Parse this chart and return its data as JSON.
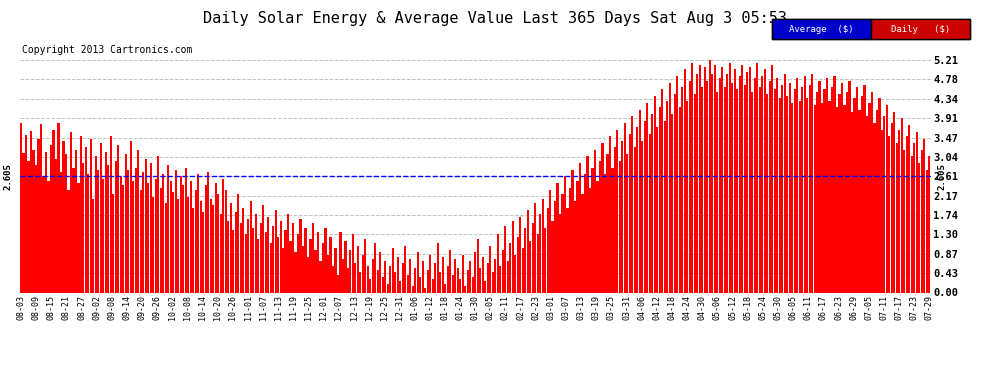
{
  "title": "Daily Solar Energy & Average Value Last 365 Days Sat Aug 3 05:53",
  "copyright": "Copyright 2013 Cartronics.com",
  "average_value": 2.605,
  "average_label": "2.605",
  "ylim": [
    0.0,
    5.21
  ],
  "yticks": [
    0.0,
    0.43,
    0.87,
    1.3,
    1.74,
    2.17,
    2.61,
    3.04,
    3.47,
    3.91,
    4.34,
    4.78,
    5.21
  ],
  "bar_color": "#FF0000",
  "average_line_color": "#0000FF",
  "background_color": "#FFFFFF",
  "grid_color": "#BBBBBB",
  "title_fontsize": 11,
  "legend_labels": [
    "Average  ($)",
    "Daily   ($)"
  ],
  "legend_colors": [
    "#0000CC",
    "#CC0000"
  ],
  "xtick_labels": [
    "08-03",
    "08-09",
    "08-15",
    "08-21",
    "08-27",
    "09-02",
    "09-08",
    "09-14",
    "09-20",
    "09-26",
    "10-02",
    "10-08",
    "10-14",
    "10-20",
    "10-26",
    "11-01",
    "11-07",
    "11-13",
    "11-19",
    "11-25",
    "12-01",
    "12-07",
    "12-13",
    "12-19",
    "12-25",
    "12-31",
    "01-06",
    "01-12",
    "01-18",
    "01-24",
    "01-30",
    "02-05",
    "02-11",
    "02-17",
    "02-23",
    "03-01",
    "03-07",
    "03-13",
    "03-19",
    "03-25",
    "03-31",
    "04-06",
    "04-12",
    "04-18",
    "04-24",
    "04-30",
    "05-06",
    "05-12",
    "05-18",
    "05-24",
    "05-30",
    "06-05",
    "06-11",
    "06-17",
    "06-23",
    "06-29",
    "07-05",
    "07-11",
    "07-17",
    "07-23",
    "07-29"
  ],
  "daily_values": [
    3.8,
    3.12,
    3.52,
    2.95,
    3.61,
    3.2,
    2.85,
    3.45,
    3.78,
    2.6,
    3.15,
    2.5,
    3.3,
    3.65,
    3.0,
    3.8,
    2.7,
    3.4,
    3.1,
    2.3,
    3.6,
    2.8,
    3.2,
    2.45,
    3.5,
    2.9,
    3.25,
    2.65,
    3.45,
    2.1,
    3.05,
    2.75,
    3.35,
    2.55,
    3.15,
    2.85,
    3.5,
    2.2,
    2.95,
    3.3,
    2.6,
    2.4,
    3.1,
    2.75,
    3.4,
    2.5,
    2.8,
    3.2,
    2.3,
    2.7,
    3.0,
    2.45,
    2.9,
    2.15,
    2.55,
    3.05,
    2.35,
    2.65,
    2.0,
    2.85,
    2.5,
    2.25,
    2.75,
    2.1,
    2.6,
    2.4,
    2.8,
    2.15,
    2.5,
    1.9,
    2.3,
    2.65,
    2.05,
    1.8,
    2.4,
    2.7,
    2.1,
    1.95,
    2.45,
    2.2,
    1.75,
    2.55,
    2.3,
    1.6,
    2.0,
    1.4,
    1.8,
    2.2,
    1.55,
    1.9,
    1.3,
    1.65,
    2.05,
    1.45,
    1.75,
    1.2,
    1.55,
    1.95,
    1.35,
    1.7,
    1.1,
    1.5,
    1.85,
    1.25,
    1.6,
    1.0,
    1.4,
    1.75,
    1.15,
    1.55,
    0.9,
    1.3,
    1.65,
    1.05,
    1.45,
    0.8,
    1.2,
    1.55,
    0.95,
    1.35,
    0.7,
    1.1,
    1.45,
    0.85,
    1.25,
    0.6,
    1.0,
    0.4,
    1.35,
    0.75,
    1.15,
    0.55,
    0.95,
    1.3,
    0.65,
    1.05,
    0.45,
    0.85,
    1.2,
    0.6,
    0.3,
    0.75,
    1.1,
    0.5,
    0.9,
    0.35,
    0.7,
    0.2,
    0.6,
    1.0,
    0.45,
    0.8,
    0.25,
    0.65,
    1.05,
    0.4,
    0.75,
    0.15,
    0.55,
    0.9,
    0.35,
    0.7,
    0.1,
    0.5,
    0.85,
    0.3,
    0.65,
    1.1,
    0.45,
    0.8,
    0.2,
    0.6,
    0.95,
    0.4,
    0.75,
    0.55,
    0.3,
    0.85,
    0.15,
    0.5,
    0.7,
    0.35,
    0.9,
    1.2,
    0.55,
    0.8,
    0.25,
    0.65,
    1.05,
    0.45,
    0.75,
    1.3,
    0.6,
    0.95,
    1.5,
    0.7,
    1.1,
    1.6,
    0.85,
    1.25,
    1.7,
    1.0,
    1.45,
    1.85,
    1.15,
    1.55,
    2.0,
    1.3,
    1.75,
    2.1,
    1.45,
    1.9,
    2.3,
    1.6,
    2.05,
    2.45,
    1.75,
    2.2,
    2.6,
    1.9,
    2.35,
    2.75,
    2.05,
    2.5,
    2.9,
    2.2,
    2.65,
    3.05,
    2.35,
    2.8,
    3.2,
    2.5,
    2.95,
    3.35,
    2.65,
    3.1,
    3.5,
    2.8,
    3.25,
    3.65,
    2.95,
    3.4,
    3.8,
    3.1,
    3.55,
    3.95,
    3.25,
    3.7,
    4.1,
    3.4,
    3.85,
    4.25,
    3.55,
    4.0,
    4.4,
    3.7,
    4.15,
    4.55,
    3.85,
    4.3,
    4.7,
    4.0,
    4.45,
    4.85,
    4.15,
    4.6,
    5.0,
    4.3,
    4.75,
    5.15,
    4.45,
    4.9,
    5.1,
    4.6,
    5.05,
    4.75,
    5.2,
    4.9,
    5.1,
    4.5,
    4.8,
    5.05,
    4.6,
    4.9,
    5.15,
    4.7,
    5.0,
    4.55,
    4.85,
    5.1,
    4.65,
    4.95,
    5.05,
    4.5,
    4.8,
    5.15,
    4.6,
    4.85,
    5.0,
    4.45,
    4.75,
    5.1,
    4.55,
    4.8,
    4.35,
    4.65,
    4.9,
    4.4,
    4.7,
    4.25,
    4.55,
    4.8,
    4.3,
    4.6,
    4.85,
    4.35,
    4.65,
    4.9,
    4.2,
    4.5,
    4.75,
    4.25,
    4.55,
    4.8,
    4.3,
    4.6,
    4.85,
    4.15,
    4.45,
    4.7,
    4.2,
    4.5,
    4.75,
    4.05,
    4.35,
    4.6,
    4.1,
    4.4,
    4.65,
    3.95,
    4.25,
    4.5,
    3.8,
    4.1,
    4.35,
    3.65,
    3.95,
    4.2,
    3.5,
    3.8,
    4.05,
    3.35,
    3.65,
    3.9,
    3.2,
    3.5,
    3.75,
    3.05,
    3.35,
    3.6,
    2.9,
    3.2,
    3.45,
    2.75,
    3.05
  ]
}
